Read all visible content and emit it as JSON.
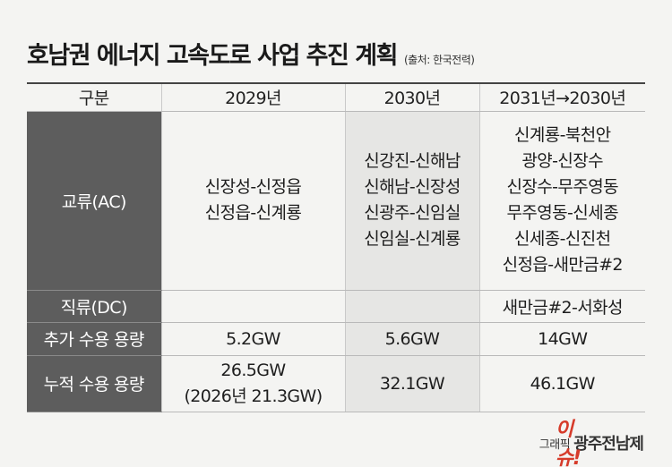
{
  "title": "호남권 에너지 고속도로 사업 추진 계획",
  "source": "(출처: 한국전력)",
  "table": {
    "headers": [
      "구분",
      "2029년",
      "2030년",
      "2031년→2030년"
    ],
    "rows": {
      "ac": {
        "label": "교류(AC)",
        "y2029": [
          "신장성-신정읍",
          "신정읍-신계룡"
        ],
        "y2030": [
          "신강진-신해남",
          "신해남-신장성",
          "신광주-신임실",
          "신임실-신계룡"
        ],
        "y2031": [
          "신계룡-북천안",
          "광양-신장수",
          "신장수-무주영동",
          "무주영동-신세종",
          "신세종-신진천",
          "신정읍-새만금#2"
        ]
      },
      "dc": {
        "label": "직류(DC)",
        "y2029": "",
        "y2030": "",
        "y2031": "새만금#2-서화성"
      },
      "added": {
        "label": "추가 수용 용량",
        "y2029": "5.2GW",
        "y2030": "5.6GW",
        "y2031": "14GW"
      },
      "cumulative": {
        "label": "누적 수용 용량",
        "y2029": [
          "26.5GW",
          "(2026년 21.3GW)"
        ],
        "y2030": "32.1GW",
        "y2031": "46.1GW"
      }
    }
  },
  "credit": {
    "text": "그래픽 ",
    "logo_accent": "이슈!",
    "logo": "광주전남제"
  },
  "colors": {
    "label_bg": "#5d5d5d",
    "shade_bg": "#e6e6e4",
    "accent": "#d63b2a"
  }
}
